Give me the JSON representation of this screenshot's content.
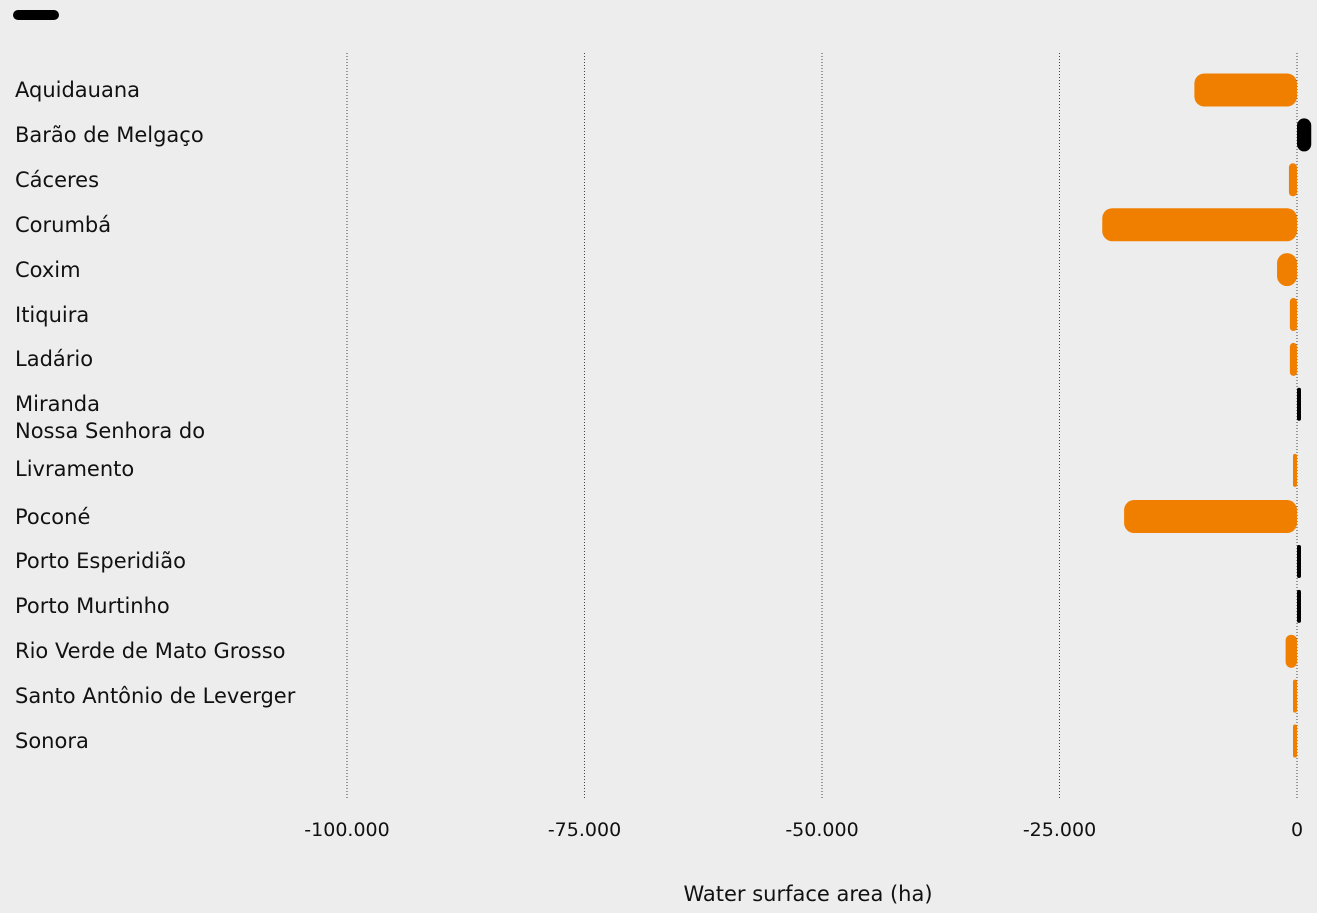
{
  "chart_data": {
    "type": "bar",
    "orientation": "horizontal",
    "xlabel": "Water surface area (ha)",
    "xlim": [
      -100000,
      0
    ],
    "xticks": [
      -100000,
      -75000,
      -50000,
      -25000,
      0
    ],
    "xtick_labels": [
      "-100.000",
      "-75.000",
      "-50.000",
      "-25.000",
      "0"
    ],
    "grid": true,
    "categories": [
      "Aquidauana",
      "Barão de Melgaço",
      "Cáceres",
      "Corumbá",
      "Coxim",
      "Itiquira",
      "Ladário",
      "Miranda",
      "Nossa Senhora do Livramento",
      "Poconé",
      "Porto Esperidião",
      "Porto Murtinho",
      "Rio Verde de Mato Grosso",
      "Santo Antônio de Leverger",
      "Sonora"
    ],
    "label_lines": [
      [
        "Aquidauana"
      ],
      [
        "Barão de Melgaço"
      ],
      [
        "Cáceres"
      ],
      [
        "Corumbá"
      ],
      [
        "Coxim"
      ],
      [
        "Itiquira"
      ],
      [
        "Ladário"
      ],
      [
        "Miranda"
      ],
      [
        "Nossa Senhora do",
        "Livramento"
      ],
      [
        "Poconé"
      ],
      [
        "Porto Esperidião"
      ],
      [
        "Porto Murtinho"
      ],
      [
        "Rio Verde de Mato Grosso"
      ],
      [
        "Santo Antônio de Leverger"
      ],
      [
        "Sonora"
      ]
    ],
    "values": [
      -10800,
      1500,
      -850,
      -20500,
      -2100,
      -750,
      -750,
      150,
      -300,
      -18200,
      100,
      400,
      -1200,
      -400,
      -400
    ],
    "colors": {
      "negative": "#f07f00",
      "positive": "#000000",
      "grid": "#444444",
      "background": "#ededed"
    },
    "legend": {
      "swatch_color": "#000000",
      "label": ""
    }
  }
}
